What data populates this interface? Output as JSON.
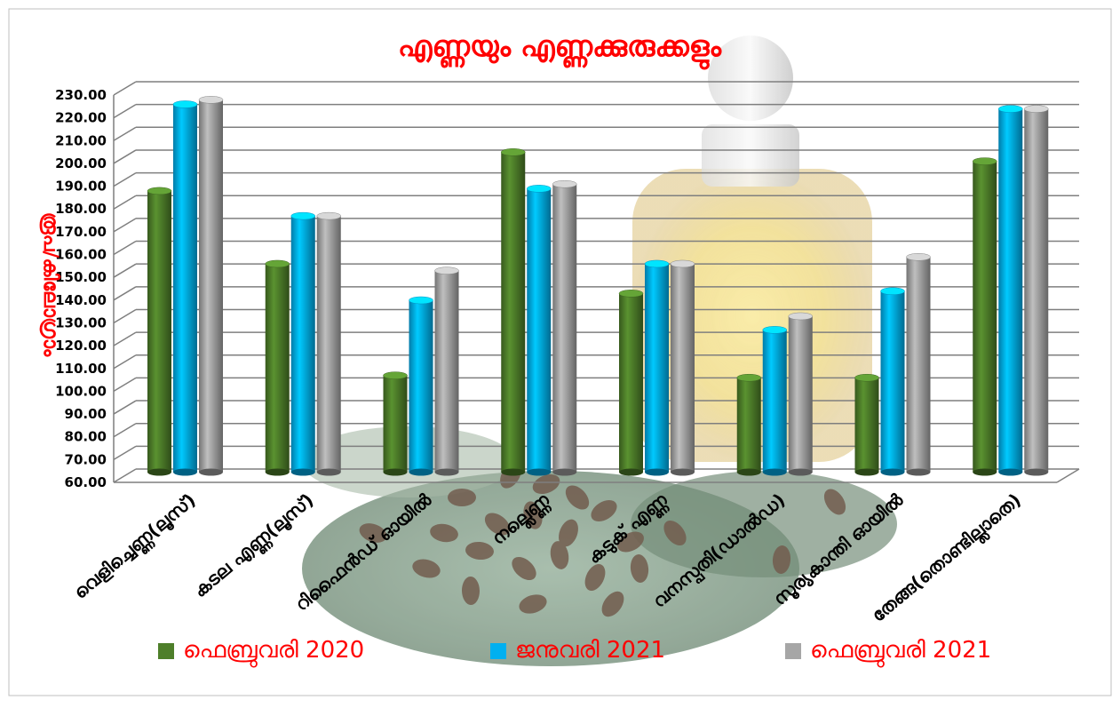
{
  "chart_data": {
    "type": "bar",
    "title": "എണ്ണയും എണ്ണക്കുരുക്കളും",
    "ylabel": "രൂപ/കിലോഗ്രാം",
    "xlabel": "",
    "ylim": [
      60,
      230
    ],
    "ytick_step": 10,
    "ytick_labels": [
      "60.00",
      "70.00",
      "80.00",
      "90.00",
      "100.00",
      "110.00",
      "120.00",
      "130.00",
      "140.00",
      "150.00",
      "160.00",
      "170.00",
      "180.00",
      "190.00",
      "200.00",
      "210.00",
      "220.00",
      "230.00"
    ],
    "categories": [
      "വെളിച്ചെണ്ണ(ലൂസ്)",
      "കടല എണ്ണ(ലൂസ്)",
      "റിഫൈൻഡ് ഓയിൽ",
      "നല്ലെണ്ണ",
      "കടുക് എണ്ണ",
      "വനസ്പതി(ഡാൽഡ)",
      "സൂര്യകാന്തി ഓയിൽ",
      "തേങ്ങ(തൊണ്ടില്ലാതെ)"
    ],
    "series": [
      {
        "name": "ഫെബ്രുവരി 2020",
        "color": "#4e7f2a",
        "values": [
          185,
          153,
          104,
          202,
          140,
          103,
          103,
          198
        ]
      },
      {
        "name": "ജനുവരി 2021",
        "color": "#00b0f0",
        "values": [
          223,
          174,
          137,
          186,
          153,
          124,
          141,
          221
        ]
      },
      {
        "name": "ഫെബ്രുവരി 2021",
        "color": "#a6a6a6",
        "values": [
          225,
          174,
          150,
          188,
          153,
          130,
          156,
          221
        ]
      }
    ],
    "grid": true,
    "legend_position": "bottom",
    "colors": {
      "title": "#ff0000",
      "axis_label": "#ff0000",
      "legend_text": "#ff0000",
      "grid": "#7f7f7f",
      "border": "#bfbfbf"
    }
  }
}
